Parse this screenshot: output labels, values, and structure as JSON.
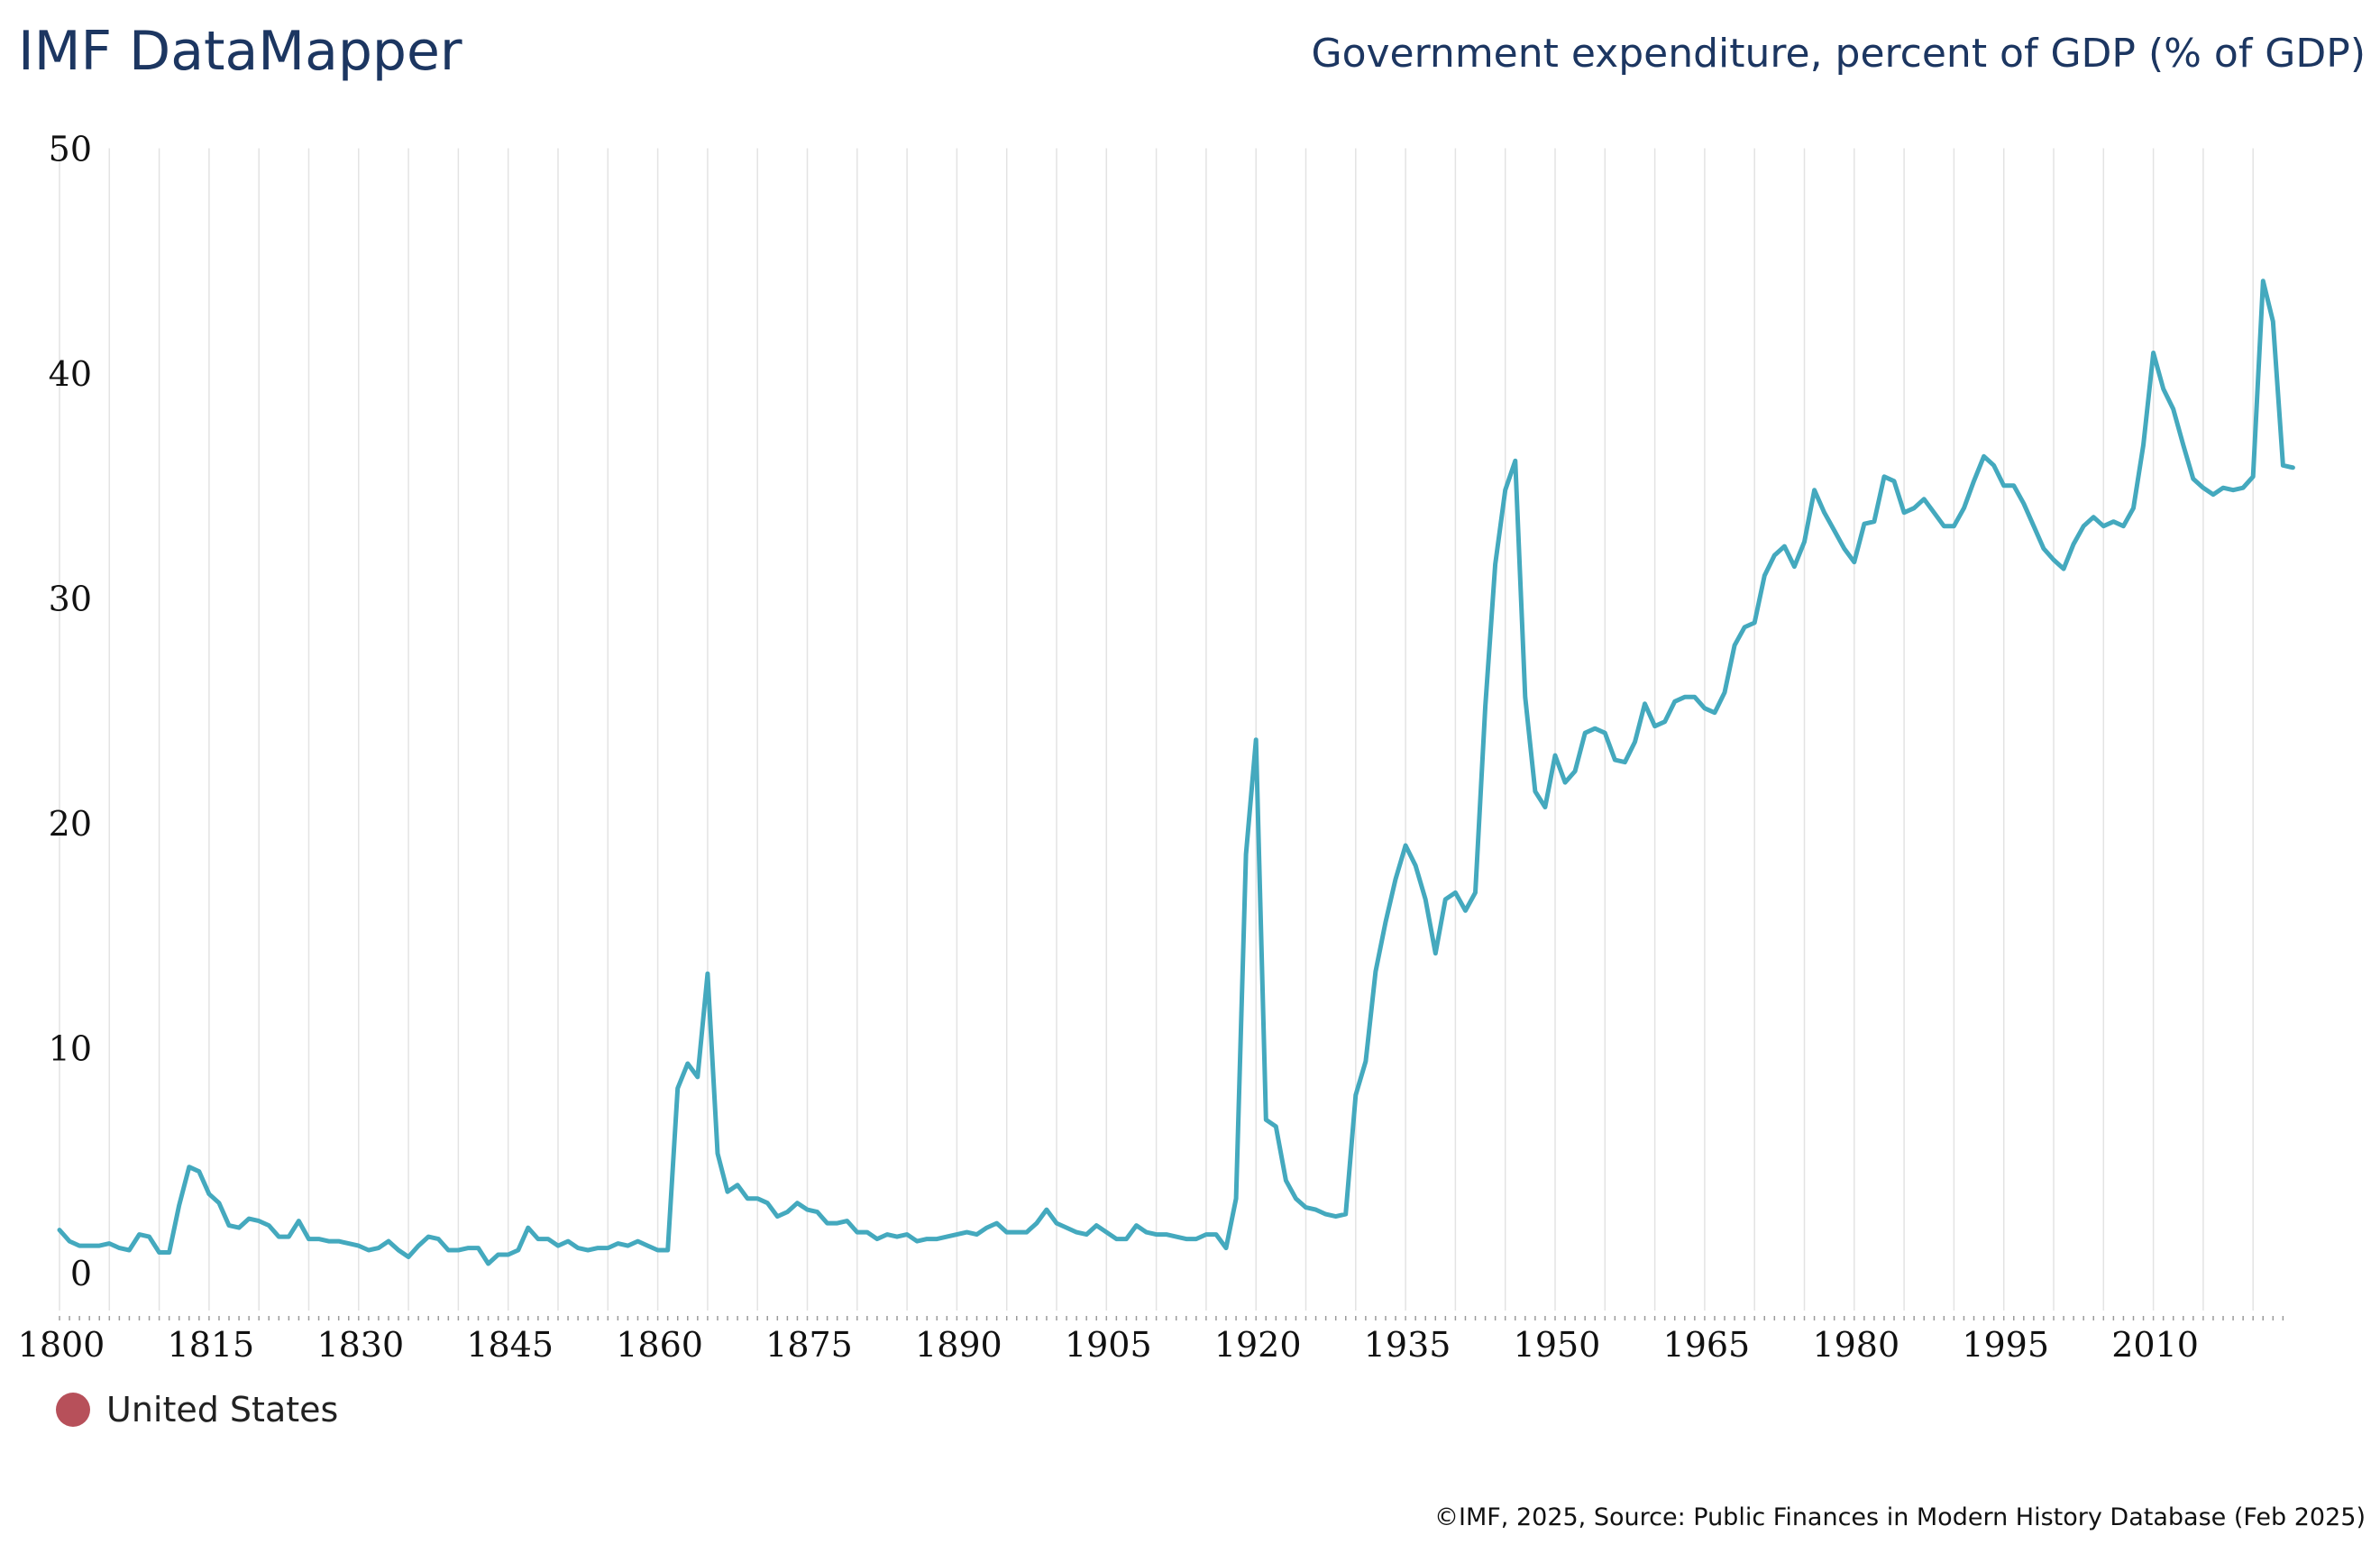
{
  "header": {
    "brand": "IMF DataMapper",
    "title": "Government expenditure, percent of GDP (% of GDP)"
  },
  "legend": {
    "label": "United States",
    "dot_color": "#b7505a"
  },
  "footer": {
    "text": "©IMF, 2025, Source: Public Finances in Modern History Database (Feb 2025)"
  },
  "chart_data": {
    "type": "line",
    "ylim": [
      0,
      50
    ],
    "xlim": [
      1800,
      2023
    ],
    "y_ticks": [
      "0",
      "10",
      "20",
      "30",
      "40",
      "50"
    ],
    "x_ticks": [
      "1800",
      "1815",
      "1830",
      "1845",
      "1860",
      "1875",
      "1890",
      "1905",
      "1920",
      "1935",
      "1950",
      "1965",
      "1980",
      "1995",
      "2010"
    ],
    "grid": "vertical",
    "line_color": "#44a9be",
    "series": [
      {
        "x_start": 1800,
        "values": [
          1.9,
          1.4,
          1.2,
          1.2,
          1.2,
          1.3,
          1.1,
          1.0,
          1.7,
          1.6,
          0.9,
          0.9,
          3.0,
          4.7,
          4.5,
          3.5,
          3.1,
          2.1,
          2.0,
          2.4,
          2.3,
          2.1,
          1.6,
          1.6,
          2.3,
          1.5,
          1.5,
          1.4,
          1.4,
          1.3,
          1.2,
          1.0,
          1.1,
          1.4,
          1.0,
          0.7,
          1.2,
          1.6,
          1.5,
          1.0,
          1.0,
          1.1,
          1.1,
          0.4,
          0.8,
          0.8,
          1.0,
          2.0,
          1.5,
          1.5,
          1.2,
          1.4,
          1.1,
          1.0,
          1.1,
          1.1,
          1.3,
          1.2,
          1.4,
          1.2,
          1.0,
          1.0,
          8.2,
          9.3,
          8.7,
          13.3,
          5.3,
          3.6,
          3.9,
          3.3,
          3.3,
          3.1,
          2.5,
          2.7,
          3.1,
          2.8,
          2.7,
          2.2,
          2.2,
          2.3,
          1.8,
          1.8,
          1.5,
          1.7,
          1.6,
          1.7,
          1.4,
          1.5,
          1.5,
          1.6,
          1.7,
          1.8,
          1.7,
          2.0,
          2.2,
          1.8,
          1.8,
          1.8,
          2.2,
          2.8,
          2.2,
          2.0,
          1.8,
          1.7,
          2.1,
          1.8,
          1.5,
          1.5,
          2.1,
          1.8,
          1.7,
          1.7,
          1.6,
          1.5,
          1.5,
          1.7,
          1.7,
          1.1,
          3.3,
          18.6,
          23.7,
          6.8,
          6.5,
          4.1,
          3.3,
          2.9,
          2.8,
          2.6,
          2.5,
          2.6,
          7.9,
          9.4,
          13.4,
          15.6,
          17.5,
          19.0,
          18.1,
          16.6,
          14.2,
          16.6,
          16.9,
          16.1,
          16.9,
          25.2,
          31.5,
          34.8,
          36.1,
          25.6,
          21.4,
          20.7,
          23.0,
          21.8,
          22.3,
          24.0,
          24.2,
          24.0,
          22.8,
          22.7,
          23.6,
          25.3,
          24.3,
          24.5,
          25.4,
          25.6,
          25.6,
          25.1,
          24.9,
          25.8,
          27.9,
          28.7,
          28.9,
          31.0,
          31.9,
          32.3,
          31.4,
          32.5,
          34.8,
          33.8,
          33.0,
          32.2,
          31.6,
          33.3,
          33.4,
          35.4,
          35.2,
          33.8,
          34.0,
          34.4,
          33.8,
          33.2,
          33.2,
          34.0,
          35.2,
          36.3,
          35.9,
          35.0,
          35.0,
          34.2,
          33.2,
          32.2,
          31.7,
          31.3,
          32.4,
          33.2,
          33.6,
          33.2,
          33.4,
          33.2,
          34.0,
          36.8,
          40.9,
          39.3,
          38.4,
          36.8,
          35.3,
          34.9,
          34.6,
          34.9,
          34.8,
          34.9,
          35.4,
          44.1,
          42.3,
          35.9,
          35.8
        ]
      }
    ]
  }
}
